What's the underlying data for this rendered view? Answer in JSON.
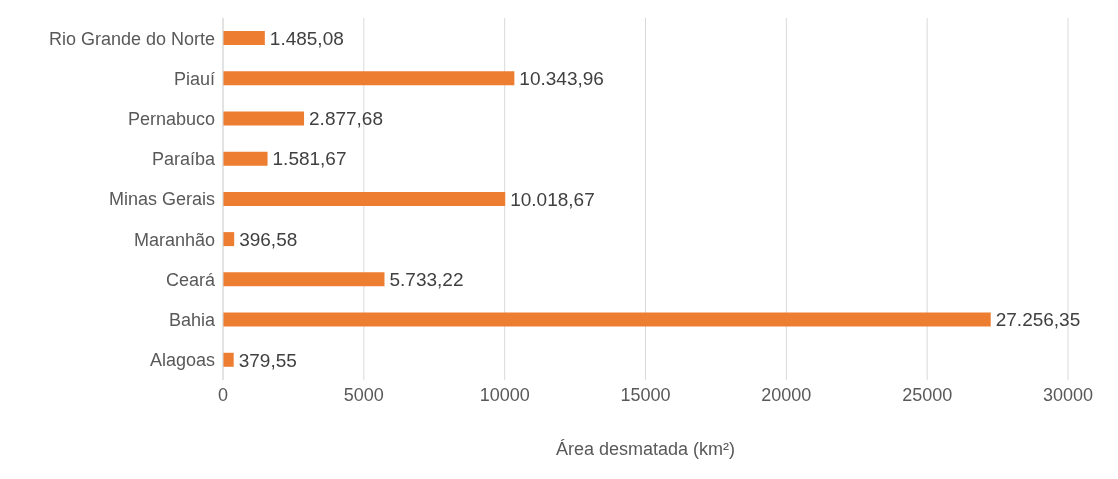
{
  "chart_data": {
    "type": "bar",
    "orientation": "horizontal",
    "xlabel": "Área desmatada (km²)",
    "categories": [
      "Rio Grande do Norte",
      "Piauí",
      "Pernabuco",
      "Paraíba",
      "Minas Gerais",
      "Maranhão",
      "Ceará",
      "Bahia",
      "Alagoas"
    ],
    "values": [
      1485.08,
      10343.96,
      2877.68,
      1581.67,
      10018.67,
      396.58,
      5733.22,
      27256.35,
      379.55
    ],
    "value_labels": [
      "1.485,08",
      "10.343,96",
      "2.877,68",
      "1.581,67",
      "10.018,67",
      "396,58",
      "5.733,22",
      "27.256,35",
      "379,55"
    ],
    "color": "#ed7d31",
    "xlim": [
      0,
      30000
    ],
    "xticks": [
      0,
      5000,
      10000,
      15000,
      20000,
      25000,
      30000
    ],
    "grid": "x"
  }
}
